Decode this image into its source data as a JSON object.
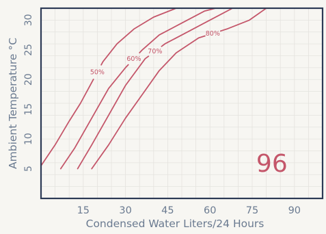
{
  "chart_data": {
    "type": "line",
    "xlabel": "Condensed Water Liters/24 Hours",
    "ylabel": "Ambient Temperature °C",
    "xlim": [
      0,
      100
    ],
    "ylim": [
      0,
      32
    ],
    "x_ticks": [
      15,
      30,
      45,
      60,
      75,
      90
    ],
    "y_ticks": [
      5,
      10,
      15,
      20,
      25,
      30
    ],
    "grid": true,
    "series": [
      {
        "name": "50%",
        "points": [
          [
            0,
            5.5
          ],
          [
            5,
            9
          ],
          [
            10,
            13
          ],
          [
            14,
            16
          ],
          [
            18,
            19.5
          ],
          [
            22,
            23
          ],
          [
            27,
            26
          ],
          [
            33,
            28.5
          ],
          [
            40,
            30.5
          ],
          [
            48,
            32
          ]
        ]
      },
      {
        "name": "60%",
        "points": [
          [
            7,
            5
          ],
          [
            12,
            8.5
          ],
          [
            18,
            13.5
          ],
          [
            24,
            18.5
          ],
          [
            30,
            22
          ],
          [
            36,
            25
          ],
          [
            42,
            27.5
          ],
          [
            50,
            29.5
          ],
          [
            58,
            31.5
          ],
          [
            62,
            32
          ]
        ]
      },
      {
        "name": "70%",
        "points": [
          [
            13,
            5
          ],
          [
            18,
            9
          ],
          [
            24,
            14
          ],
          [
            30,
            19
          ],
          [
            37,
            23.5
          ],
          [
            44,
            26
          ],
          [
            52,
            28
          ],
          [
            58,
            29.5
          ],
          [
            64,
            31
          ],
          [
            68,
            32
          ]
        ]
      },
      {
        "name": "80%",
        "points": [
          [
            18,
            5
          ],
          [
            24,
            9
          ],
          [
            30,
            13.5
          ],
          [
            36,
            17.5
          ],
          [
            42,
            21.5
          ],
          [
            48,
            24.5
          ],
          [
            56,
            27
          ],
          [
            66,
            28.5
          ],
          [
            74,
            30
          ],
          [
            80,
            32
          ]
        ]
      }
    ],
    "annotation": "96",
    "line_color": "#c4566a",
    "axis_color": "#2c3a55",
    "text_color": "#6a7a90",
    "grid_color": "#e4e3de"
  }
}
